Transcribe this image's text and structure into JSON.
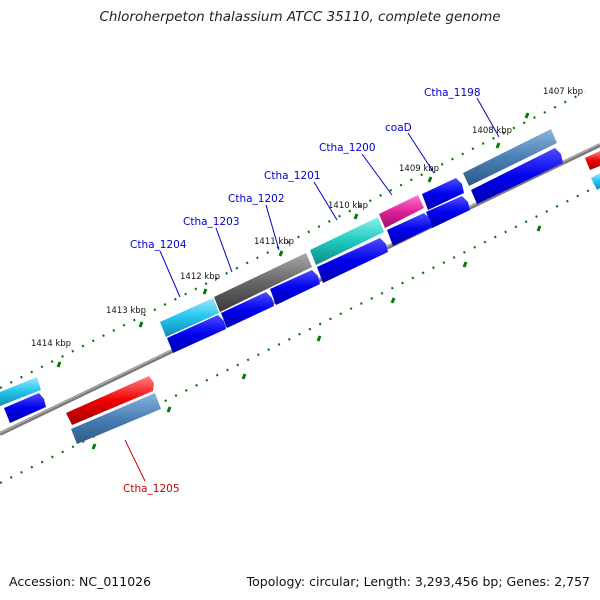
{
  "title": "Chloroherpeton thalassium ATCC 35110, complete genome",
  "footer": {
    "accession": "Accession: NC_011026",
    "summary": "Topology: circular; Length: 3,293,456 bp; Genes: 2,757"
  },
  "scale_labels": [
    "1407 kbp",
    "1408 kbp",
    "1409 kbp",
    "1410 kbp",
    "1411 kbp",
    "1412 kbp",
    "1413 kbp",
    "1414 kbp"
  ],
  "gene_labels": [
    {
      "id": "Ctha_1198",
      "label": "Ctha_1198",
      "color": "#0000cc"
    },
    {
      "id": "coaD",
      "label": "coaD",
      "color": "#0000cc"
    },
    {
      "id": "Ctha_1200",
      "label": "Ctha_1200",
      "color": "#0000cc"
    },
    {
      "id": "Ctha_1201",
      "label": "Ctha_1201",
      "color": "#0000cc"
    },
    {
      "id": "Ctha_1202",
      "label": "Ctha_1202",
      "color": "#0000cc"
    },
    {
      "id": "Ctha_1203",
      "label": "Ctha_1203",
      "color": "#0000cc"
    },
    {
      "id": "Ctha_1204",
      "label": "Ctha_1204",
      "color": "#0000cc"
    },
    {
      "id": "Ctha_1205",
      "label": "Ctha_1205",
      "color": "#cc0000"
    }
  ],
  "colors": {
    "backbone": "#808080",
    "tick": "#007a00",
    "cds": "#0000ee",
    "steelblue_gene": "#4a7fb5",
    "magenta_gene": "#e0209a",
    "teal_gene": "#1ec8c0",
    "gray_gene": "#666666",
    "cyan_gene": "#22c4ee",
    "red_gene": "#ee0000"
  }
}
